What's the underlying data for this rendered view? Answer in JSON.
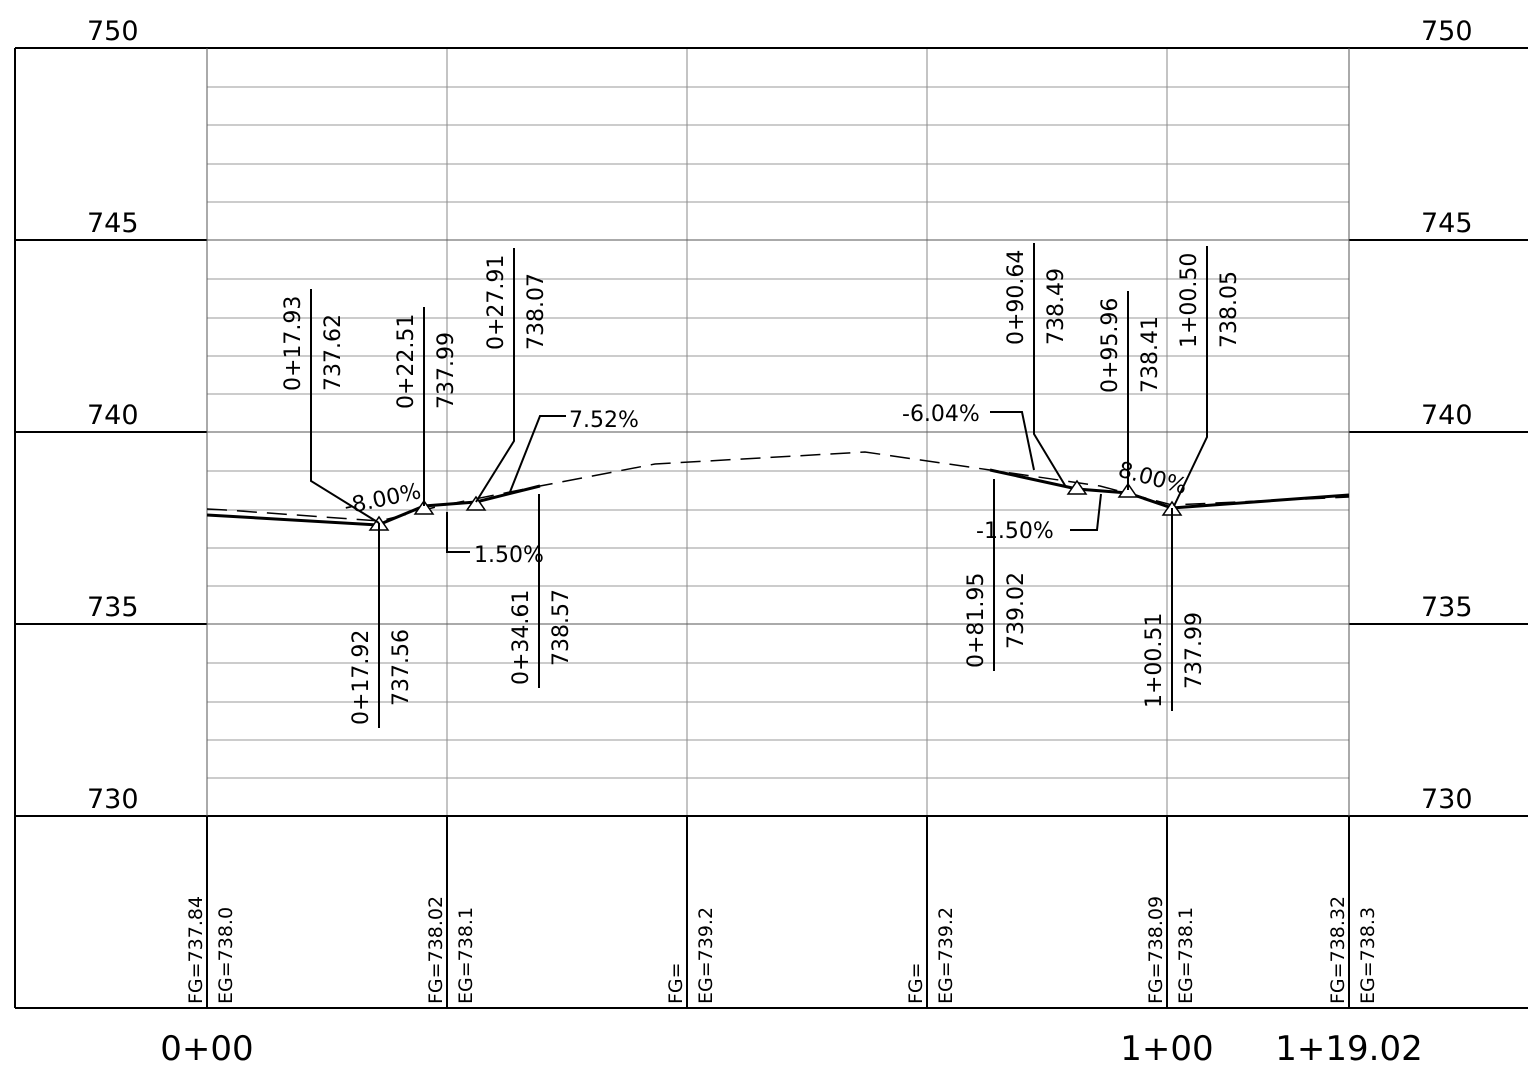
{
  "elevation_labels": [
    "750",
    "745",
    "740",
    "735",
    "730"
  ],
  "station_labels": [
    "0+00",
    "1+00",
    "1+19.02"
  ],
  "points_above": [
    {
      "station": "0+17.93",
      "elevation": "737.62"
    },
    {
      "station": "0+22.51",
      "elevation": "737.99"
    },
    {
      "station": "0+27.91",
      "elevation": "738.07"
    },
    {
      "station": "0+90.64",
      "elevation": "738.49"
    },
    {
      "station": "0+95.96",
      "elevation": "738.41"
    },
    {
      "station": "1+00.50",
      "elevation": "738.05"
    }
  ],
  "points_below": [
    {
      "station": "0+17.92",
      "elevation": "737.56"
    },
    {
      "station": "0+34.61",
      "elevation": "738.57"
    },
    {
      "station": "0+81.95",
      "elevation": "739.02"
    },
    {
      "station": "1+00.51",
      "elevation": "737.99"
    }
  ],
  "grades": [
    {
      "text": "-8.00%"
    },
    {
      "text": "7.52%"
    },
    {
      "text": "-6.04%"
    },
    {
      "text": "-1.50%"
    },
    {
      "text": "1.50%"
    },
    {
      "text": "8.00%"
    }
  ],
  "band_columns": [
    {
      "fg": "FG=737.84",
      "eg": "EG=738.0"
    },
    {
      "fg": "FG=738.02",
      "eg": "EG=738.1"
    },
    {
      "fg": "FG=",
      "eg": "EG=739.2"
    },
    {
      "fg": "FG=",
      "eg": "EG=739.2"
    },
    {
      "fg": "FG=738.09",
      "eg": "EG=738.1"
    },
    {
      "fg": "FG=738.32",
      "eg": "EG=738.3"
    }
  ]
}
